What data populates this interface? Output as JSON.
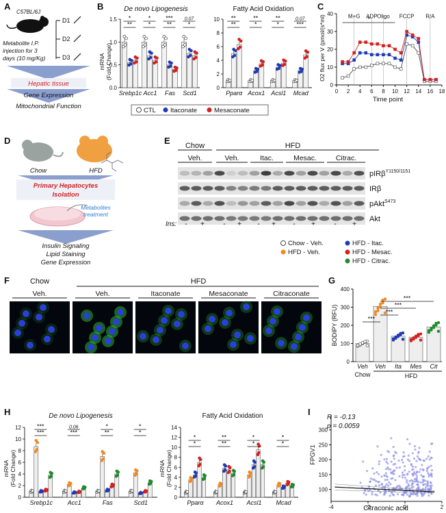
{
  "panel_letters": [
    "A",
    "B",
    "C",
    "D",
    "E",
    "F",
    "G",
    "H",
    "I"
  ],
  "colors": {
    "ctl": "#ffffff",
    "itaconate": "#1f3bb3",
    "mesaconate": "#d32020",
    "citraconate": "#1f8a2e",
    "hfd_veh": "#f08a24",
    "red_text": "#d32020",
    "blue_text": "#2a7fd4",
    "arrow": "#8b9fcf",
    "mouse_gray": "#9aa3a0",
    "mouse_orange": "#f0a040",
    "scatter": "#8d93e8"
  },
  "A": {
    "strain": "C57BL/6J",
    "injection": [
      "Metabolite I.P.",
      "injection for 3",
      "days (10 mg/Kg)"
    ],
    "days": [
      "D1",
      "D2",
      "D3"
    ],
    "tissue": "Hepatic tissue",
    "outputs": [
      "Gene Expression",
      "Mitochondrial Function"
    ]
  },
  "B": {
    "ylabel": [
      "mRNA",
      "(Fold Change)"
    ],
    "section_left": "De novo Lipogenesis",
    "section_right": "Fatty Acid Oxidation",
    "left_genes": [
      "Srebp1c",
      "Acc1",
      "Fas",
      "Scd1"
    ],
    "right_genes": [
      "Pparα",
      "Acox1",
      "Acsl1",
      "Mcad"
    ],
    "left_yticks": [
      "0.0",
      "0.5",
      "1.0",
      "1.5"
    ],
    "right_yticks": [
      "0",
      "2",
      "4",
      "6",
      "8",
      "10"
    ],
    "left_values": {
      "ctl": [
        1.0,
        1.0,
        1.0,
        1.0
      ],
      "ita": [
        0.55,
        0.7,
        0.5,
        0.75
      ],
      "mes": [
        0.6,
        0.6,
        0.4,
        0.7
      ]
    },
    "right_values": {
      "ctl": [
        1.0,
        1.0,
        1.0,
        1.0
      ],
      "ita": [
        5.0,
        2.5,
        3.0,
        2.5
      ],
      "mes": [
        6.3,
        3.5,
        3.6,
        4.8
      ]
    },
    "left_sig": [
      "**",
      "*",
      "*",
      "*",
      "**",
      "***",
      "*"
    ],
    "left_p": "0.07",
    "right_sig": [
      "**",
      "**",
      "*",
      "**",
      "*",
      "**",
      "***"
    ],
    "right_p": "0.07",
    "legend": [
      "CTL",
      "Itaconate",
      "Mesaconate"
    ]
  },
  "C": {
    "ylabel": "O2 flux per V (pmol/(s*ml)",
    "xlabel": "Time point",
    "yticks": [
      "0",
      "10",
      "20",
      "30",
      "40"
    ],
    "xticks": [
      "0",
      "2",
      "4",
      "6",
      "8",
      "10",
      "12",
      "14",
      "16",
      "18"
    ],
    "annotations": [
      "M+G",
      "ADP",
      "Oligo",
      "FCCP",
      "R/A"
    ],
    "star": "*",
    "series_ctl": [
      4,
      5,
      9,
      10,
      10,
      11,
      12,
      12,
      12,
      10,
      9,
      23,
      22,
      18,
      2,
      2,
      2
    ],
    "series_ita": [
      12,
      12,
      14,
      18,
      18,
      17,
      17,
      17,
      17,
      15,
      14,
      28,
      27,
      24,
      3,
      3,
      3
    ],
    "series_mes": [
      13,
      13,
      18,
      24,
      24,
      23,
      23,
      22,
      22,
      20,
      18,
      30,
      28,
      26,
      3,
      3,
      3
    ]
  },
  "D": {
    "mice": [
      "Chow",
      "HFD"
    ],
    "isolation": [
      "Primary Hepatocytes",
      "Isolation"
    ],
    "treatment": [
      "Metabolites",
      "treatment"
    ],
    "outputs": [
      "Insulin Signaling",
      "Lipid Staining",
      "Gene Expression"
    ]
  },
  "E": {
    "groups_top": [
      "Chow",
      "HFD"
    ],
    "groups": [
      "Veh.",
      "Veh.",
      "Itac.",
      "Mesac.",
      "Citrac."
    ],
    "bands": [
      {
        "name": "pIRβ",
        "sup": "Y1150/1151"
      },
      {
        "name": "IRβ",
        "sup": ""
      },
      {
        "name": "pAkt",
        "sup": "S473"
      },
      {
        "name": "Akt",
        "sup": ""
      }
    ],
    "ins_label": "Ins:",
    "ins_signs": [
      "-",
      "+",
      "-",
      "+",
      "-",
      "+",
      "-",
      "+",
      "-",
      "+"
    ],
    "legend": [
      "Chow - Veh.",
      "HFD - Veh.",
      "HFD - Itac.",
      "HFD - Mesac.",
      "HFD - Citrac."
    ]
  },
  "F": {
    "top": [
      "Chow",
      "HFD"
    ],
    "labels": [
      "Veh.",
      "Veh.",
      "Itaconate",
      "Mesaconate",
      "Citraconate"
    ]
  },
  "G": {
    "ylabel": "BODIPY (RFU)",
    "yticks": [
      "0",
      "100",
      "200",
      "300",
      "400"
    ],
    "categories": [
      "Veh",
      "Veh",
      "Ita",
      "Mes",
      "Cit"
    ],
    "group_labels": [
      "Chow",
      "HFD"
    ],
    "values": [
      100,
      305,
      140,
      135,
      190
    ],
    "sig": [
      "***",
      "***",
      "***",
      "***"
    ]
  },
  "H": {
    "ylabel": [
      "mRNA",
      "(Fold Change)"
    ],
    "section_left": "De novo Lipogenesis",
    "section_right": "Fatty Acid Oxidation",
    "left_genes": [
      "Srebp1c",
      "Acc1",
      "Fas",
      "Scd1"
    ],
    "right_genes": [
      "Pparα",
      "Acox1",
      "Acsl1",
      "Mcad"
    ],
    "left_yticks": [
      "0",
      "2",
      "4",
      "6",
      "8",
      "10",
      "12"
    ],
    "right_yticks": [
      "0",
      "2",
      "4",
      "6",
      "8",
      "10",
      "12",
      "14"
    ],
    "left_values": {
      "chow": [
        1.0,
        1.0,
        1.0,
        1.0
      ],
      "veh": [
        8.7,
        2.2,
        7.0,
        4.2
      ],
      "ita": [
        1.0,
        0.8,
        1.2,
        0.7
      ],
      "mes": [
        1.2,
        0.9,
        2.0,
        1.0
      ],
      "cit": [
        3.8,
        1.6,
        4.0,
        2.5
      ]
    },
    "right_values": {
      "chow": [
        1.0,
        1.0,
        1.0,
        1.0
      ],
      "veh": [
        3.5,
        2.5,
        4.5,
        2.5
      ],
      "ita": [
        4.5,
        5.8,
        6.5,
        2.0
      ],
      "mes": [
        7.0,
        5.5,
        9.5,
        2.8
      ],
      "cit": [
        4.0,
        4.8,
        6.5,
        2.3
      ]
    },
    "left_sig": [
      "***",
      "***",
      "***",
      "0.06",
      "**",
      "*",
      "*",
      "*",
      "0.05",
      "*"
    ],
    "right_sig": [
      "*",
      "*",
      "**",
      "**",
      "*",
      "*",
      "*",
      "*"
    ]
  },
  "I": {
    "r_text": "R = -0.13",
    "p_text": "p = 0.0059",
    "ylabel": "FPGV1",
    "xlabel": "Citraconic acid",
    "yticks": [
      "100",
      "150",
      "200",
      "250",
      "300"
    ],
    "xticks": [
      "-4",
      "-2",
      "0",
      "2"
    ]
  }
}
